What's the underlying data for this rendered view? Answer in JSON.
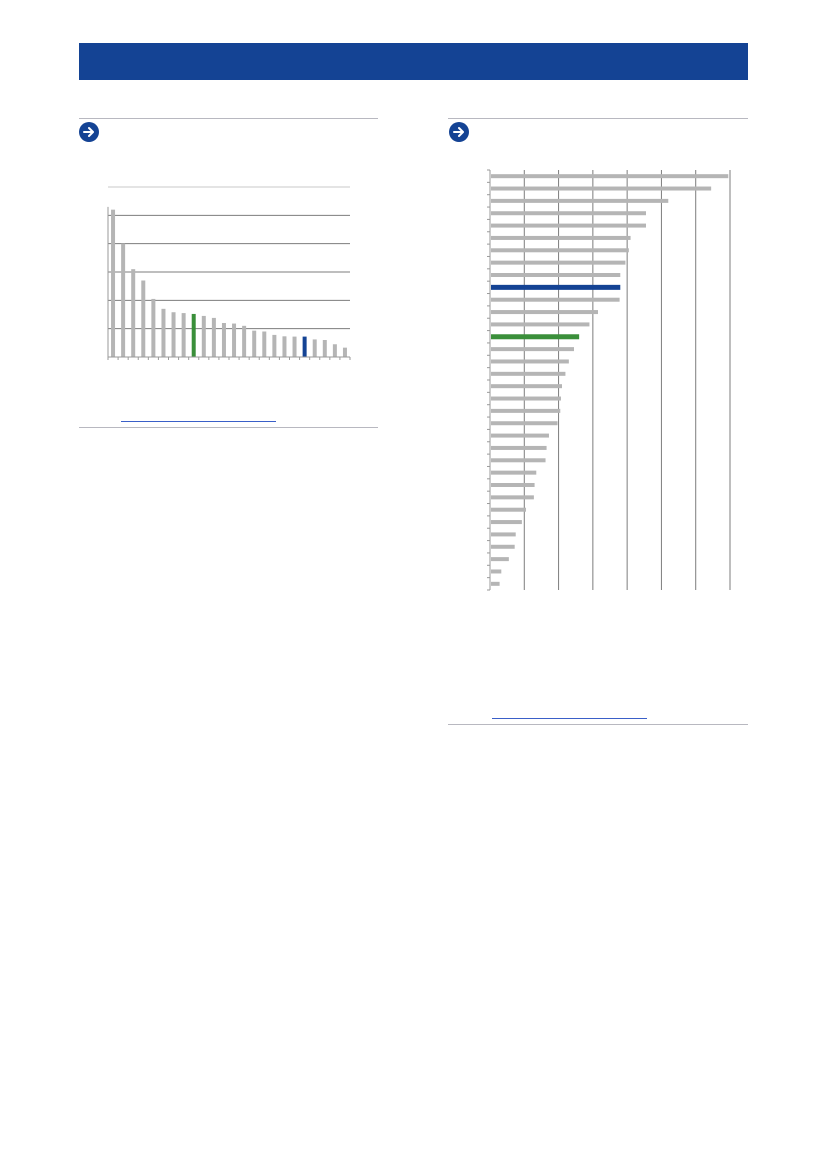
{
  "header": {
    "band_color": "#144394"
  },
  "colors": {
    "accent": "#144394",
    "highlight": "#3a8f3a",
    "bar": "#b5b5b5",
    "grid": "#7d7d7d",
    "link": "#3a5fc8"
  },
  "panels": [
    {
      "icon": "arrow-right-icon"
    },
    {
      "icon": "arrow-right-icon"
    }
  ],
  "chart_data": [
    {
      "type": "bar",
      "orientation": "vertical",
      "title": "",
      "xlabel": "",
      "ylabel": "",
      "ylim": [
        0,
        6
      ],
      "grid": true,
      "legend": "none",
      "values": [
        5.2,
        4.0,
        3.1,
        2.7,
        2.05,
        1.7,
        1.58,
        1.55,
        1.52,
        1.45,
        1.38,
        1.2,
        1.18,
        1.1,
        0.93,
        0.9,
        0.78,
        0.73,
        0.72,
        0.72,
        0.62,
        0.6,
        0.45,
        0.33
      ],
      "highlight": {
        "green": 8,
        "blue": 19
      }
    },
    {
      "type": "bar",
      "orientation": "horizontal",
      "title": "",
      "xlabel": "",
      "ylabel": "",
      "xlim": [
        0,
        7
      ],
      "grid": true,
      "legend": "none",
      "values": [
        6.95,
        6.45,
        5.2,
        4.55,
        4.55,
        4.1,
        4.05,
        3.95,
        3.8,
        3.8,
        3.78,
        3.15,
        2.9,
        2.6,
        2.45,
        2.3,
        2.2,
        2.1,
        2.07,
        2.05,
        1.97,
        1.72,
        1.65,
        1.62,
        1.35,
        1.3,
        1.28,
        1.05,
        0.93,
        0.75,
        0.72,
        0.55,
        0.33,
        0.28
      ],
      "highlight": {
        "blue": 9,
        "green": 13
      }
    }
  ]
}
